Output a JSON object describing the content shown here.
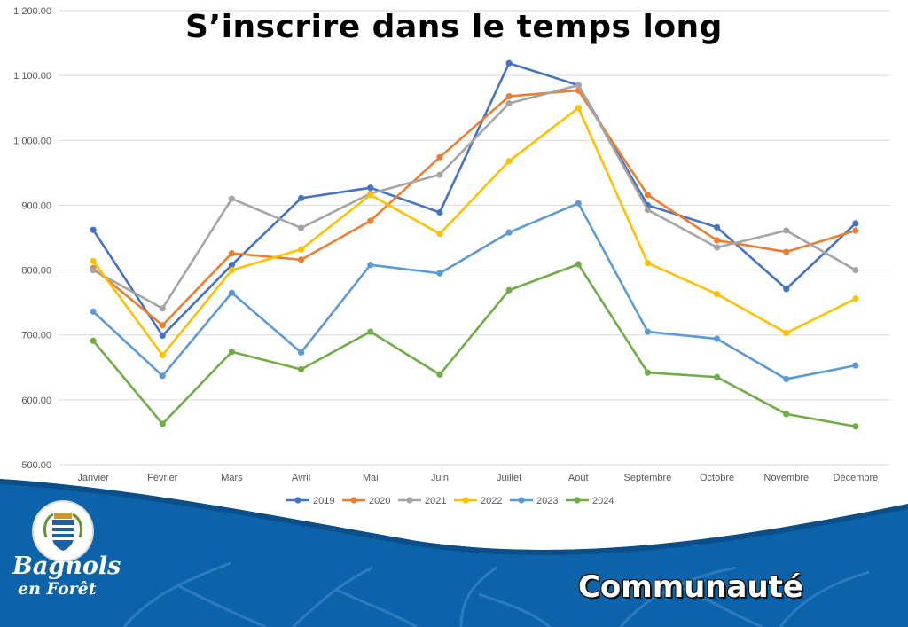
{
  "page": {
    "section_label": "Communauté",
    "brand_line1": "Bagnols",
    "brand_line2": "en Forêt"
  },
  "colors": {
    "footer_blue": "#0c63aa",
    "footer_dark": "#0a4f8a",
    "gridline": "#d9d9d9"
  },
  "chart_data": {
    "type": "line",
    "title": "S’inscrire dans le temps long",
    "xlabel": "",
    "ylabel": "",
    "ylim": [
      500,
      1200
    ],
    "yticks": [
      "500.00",
      "600.00",
      "700.00",
      "800.00",
      "900.00",
      "1 000.00",
      "1 100.00",
      "1 200.00"
    ],
    "grid": true,
    "legend_position": "bottom",
    "categories": [
      "Janvier",
      "Février",
      "Mars",
      "Avril",
      "Mai",
      "Juin",
      "Juillet",
      "Août",
      "Septembre",
      "Octobre",
      "Novembre",
      "Décembre"
    ],
    "series": [
      {
        "name": "2019",
        "color": "#4472c4",
        "values": [
          862,
          699,
          808,
          911,
          927,
          889,
          1119,
          1085,
          900,
          866,
          771,
          872
        ]
      },
      {
        "name": "2020",
        "color": "#ed7d31",
        "values": [
          803,
          715,
          826,
          816,
          876,
          974,
          1068,
          1077,
          916,
          846,
          828,
          861
        ]
      },
      {
        "name": "2021",
        "color": "#a5a5a5",
        "values": [
          800,
          741,
          910,
          865,
          918,
          947,
          1057,
          1085,
          893,
          835,
          861,
          800
        ]
      },
      {
        "name": "2022",
        "color": "#ffc000",
        "values": [
          814,
          669,
          800,
          832,
          916,
          856,
          968,
          1050,
          811,
          763,
          703,
          756
        ]
      },
      {
        "name": "2023",
        "color": "#5b9bd5",
        "values": [
          736,
          637,
          765,
          673,
          808,
          795,
          858,
          903,
          705,
          694,
          632,
          653
        ]
      },
      {
        "name": "2024",
        "color": "#70ad47",
        "values": [
          691,
          563,
          674,
          647,
          705,
          639,
          769,
          809,
          642,
          635,
          578,
          559
        ]
      }
    ]
  }
}
